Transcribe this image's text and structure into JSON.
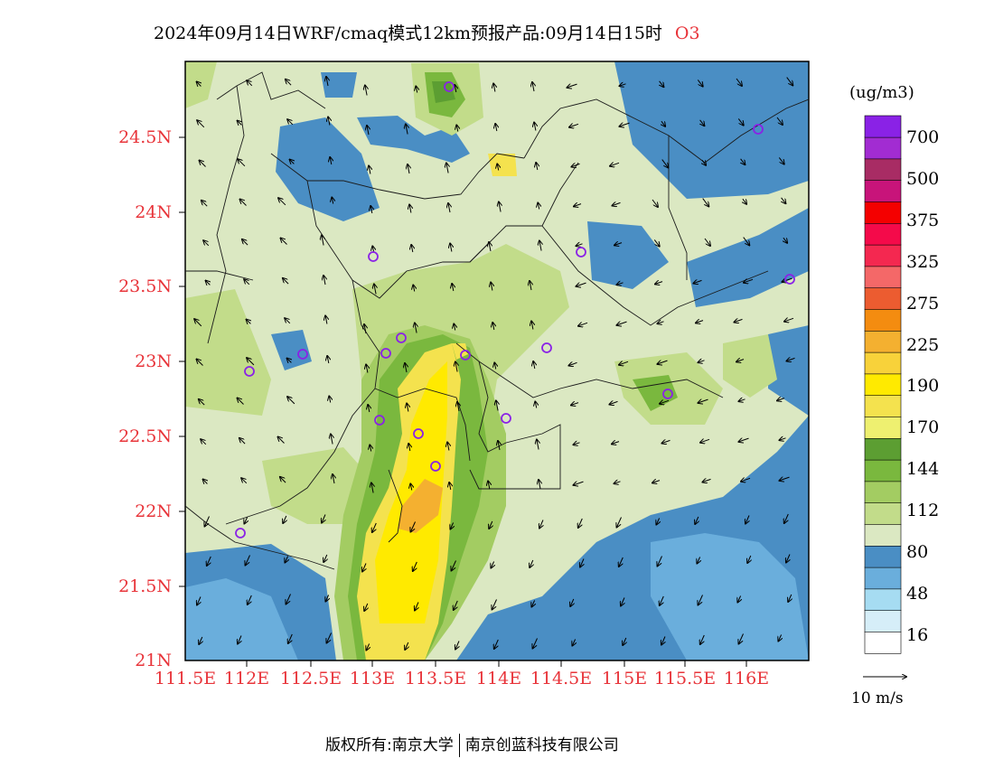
{
  "header": {
    "title": "2024年09月14日WRF/cmaq模式12km预报产品:09月14日15时",
    "pollutant": "O3"
  },
  "axes": {
    "lat_labels": [
      "24.5N",
      "24N",
      "23.5N",
      "23N",
      "22.5N",
      "22N",
      "21.5N",
      "21N"
    ],
    "lon_labels": [
      "111.5E",
      "112E",
      "112.5E",
      "113E",
      "113.5E",
      "114E",
      "114.5E",
      "115E",
      "115.5E",
      "116E"
    ]
  },
  "colorbar": {
    "unit": "(ug/m3)",
    "labels": [
      "700",
      "500",
      "375",
      "325",
      "275",
      "225",
      "190",
      "170",
      "144",
      "112",
      "80",
      "48",
      "16"
    ],
    "colors": [
      "#ffffff",
      "#d6eef8",
      "#a6dcf2",
      "#6aaedc",
      "#4a8ec4",
      "#dbe8c2",
      "#c2dc8a",
      "#a3cc62",
      "#7ab83e",
      "#5c9e32",
      "#eef070",
      "#f4e24e",
      "#ffea00",
      "#f8d23a",
      "#f4b030",
      "#f48c10",
      "#ec5c30",
      "#f46868",
      "#f42850",
      "#f40a4a",
      "#f40000",
      "#c8147a",
      "#a82c64",
      "#a22cd2",
      "#8a22e6"
    ]
  },
  "wind_reference": {
    "label": "10 m/s"
  },
  "footer": {
    "owner": "版权所有:南京大学",
    "company": "南京创蓝科技有限公司"
  },
  "colors": {
    "blue_dark": "#4a8ec4",
    "blue_light": "#6aaedc",
    "pale_green": "#dbe8c2",
    "light_green": "#c2dc8a",
    "mid_green": "#a3cc62",
    "dark_green": "#5c9e32",
    "yellow": "#f4e24e",
    "bright_yellow": "#ffea00",
    "orange": "#f4b030",
    "label_red": "#e8343a",
    "station": "#8a22e6"
  }
}
